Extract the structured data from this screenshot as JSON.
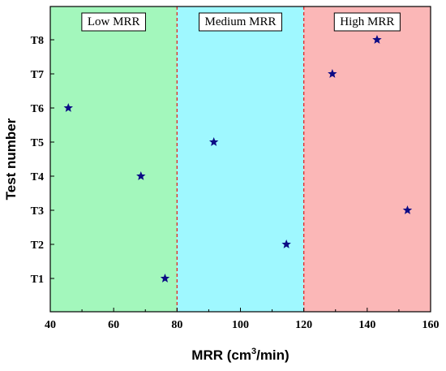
{
  "chart_data": {
    "type": "scatter",
    "xlabel_main": "MRR (cm",
    "xlabel_sup": "3",
    "xlabel_tail": "/min)",
    "ylabel": "Test number",
    "xlim": [
      40,
      160
    ],
    "x_ticks": [
      40,
      60,
      80,
      100,
      120,
      140,
      160
    ],
    "y_ticks": [
      "T1",
      "T2",
      "T3",
      "T4",
      "T5",
      "T6",
      "T7",
      "T8"
    ],
    "grid": false,
    "regions": [
      {
        "label": "Low MRR",
        "x_start": 40,
        "x_end": 80,
        "color": "#a3f7bc"
      },
      {
        "label": "Medium MRR",
        "x_start": 80,
        "x_end": 120,
        "color": "#9ff8ff"
      },
      {
        "label": "High MRR",
        "x_start": 120,
        "x_end": 160,
        "color": "#fbb7b7"
      }
    ],
    "divider_lines": [
      80,
      120
    ],
    "divider_color": "#e32626",
    "marker": "star",
    "marker_color": "#0b0b85",
    "points": [
      {
        "test": "T1",
        "x": 76.2
      },
      {
        "test": "T2",
        "x": 114.5
      },
      {
        "test": "T3",
        "x": 152.7
      },
      {
        "test": "T4",
        "x": 68.6
      },
      {
        "test": "T5",
        "x": 91.6
      },
      {
        "test": "T6",
        "x": 45.7
      },
      {
        "test": "T7",
        "x": 129.0
      },
      {
        "test": "T8",
        "x": 143.1
      }
    ]
  }
}
